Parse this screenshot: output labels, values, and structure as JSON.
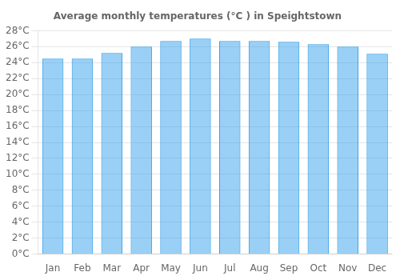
{
  "chart_data": {
    "type": "bar",
    "title": "Average monthly temperatures (°C ) in Speightstown",
    "categories": [
      "Jan",
      "Feb",
      "Mar",
      "Apr",
      "May",
      "Jun",
      "Jul",
      "Aug",
      "Sep",
      "Oct",
      "Nov",
      "Dec"
    ],
    "values": [
      24.5,
      24.5,
      25.2,
      26.0,
      26.7,
      27.0,
      26.7,
      26.7,
      26.6,
      26.3,
      26.0,
      25.1
    ],
    "ylim": [
      0,
      28
    ],
    "yticks": [
      {
        "value": 0,
        "label": "0°C"
      },
      {
        "value": 2,
        "label": "2°C"
      },
      {
        "value": 4,
        "label": "4°C"
      },
      {
        "value": 6,
        "label": "6°C"
      },
      {
        "value": 8,
        "label": "8°C"
      },
      {
        "value": 10,
        "label": "10°C"
      },
      {
        "value": 12,
        "label": "12°C"
      },
      {
        "value": 14,
        "label": "14°C"
      },
      {
        "value": 16,
        "label": "16°C"
      },
      {
        "value": 18,
        "label": "18°C"
      },
      {
        "value": 20,
        "label": "20°C"
      },
      {
        "value": 22,
        "label": "22°C"
      },
      {
        "value": 24,
        "label": "24°C"
      },
      {
        "value": 26,
        "label": "26°C"
      },
      {
        "value": 28,
        "label": "28°C"
      }
    ],
    "grid": true
  }
}
